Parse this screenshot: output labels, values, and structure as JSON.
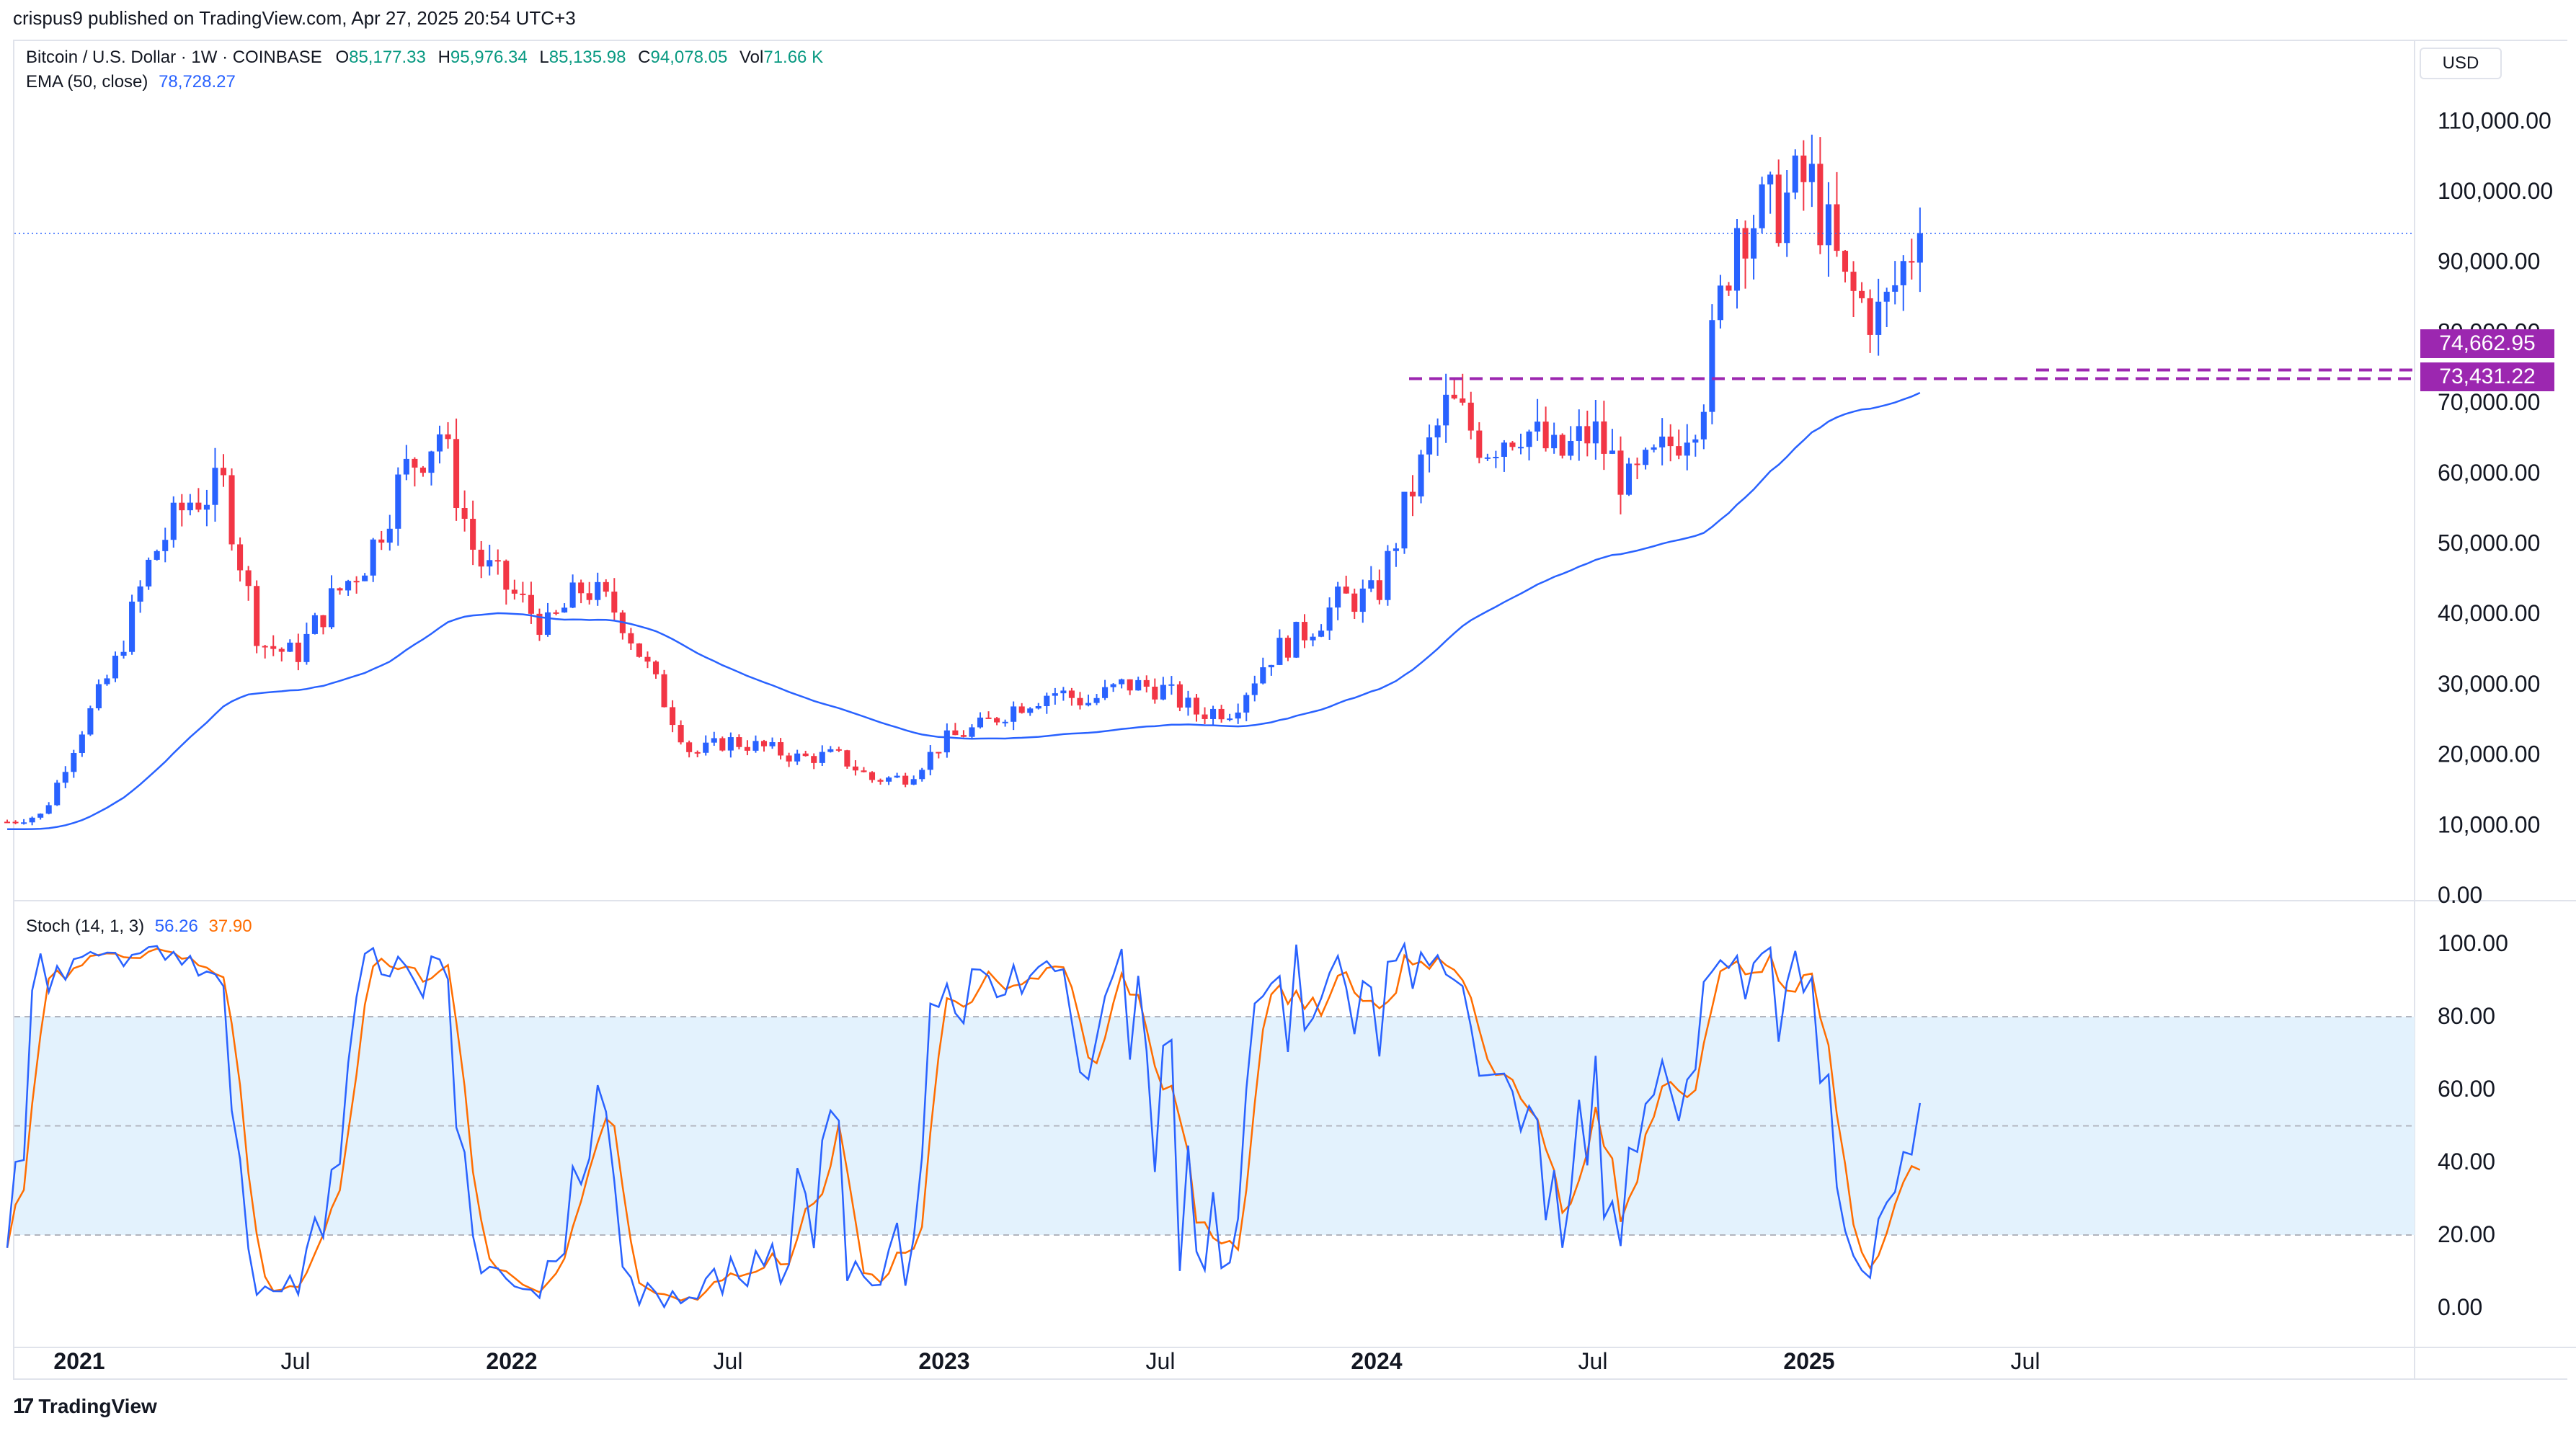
{
  "header": {
    "publisher": "crispus9 published on TradingView.com, Apr 27, 2025 20:54 UTC+3"
  },
  "legend": {
    "symbol": "Bitcoin / U.S. Dollar · 1W · COINBASE",
    "o_label": "O",
    "o_value": "85,177.33",
    "h_label": "H",
    "h_value": "95,976.34",
    "l_label": "L",
    "l_value": "85,135.98",
    "c_label": "C",
    "c_value": "94,078.05",
    "vol_label": "Vol",
    "vol_value": "71.66 K",
    "ema_label": "EMA (50, close)",
    "ema_value": "78,728.27",
    "stoch_label": "Stoch (14, 1, 3)",
    "stoch_k": "56.26",
    "stoch_d": "37.90"
  },
  "currency": "USD",
  "footer": {
    "brand": "TradingView",
    "logo_glyph": "17"
  },
  "price_tags": {
    "upper": "74,662.95",
    "lower": "73,431.22"
  },
  "colors": {
    "up": "#2962ff",
    "down": "#f23645",
    "ema": "#2962ff",
    "stoch_k": "#2962ff",
    "stoch_d": "#ff6d00",
    "support": "#9c27b0",
    "band_fill": "#e3f2fd",
    "grid": "#b2b5be"
  },
  "chart_data": [
    {
      "type": "candlestick",
      "title": "Bitcoin / U.S. Dollar · 1W · COINBASE",
      "ylim": [
        0,
        120000
      ],
      "yticks": [
        "110,000.00",
        "100,000.00",
        "90,000.00",
        "80,000.00",
        "70,000.00",
        "60,000.00",
        "50,000.00",
        "40,000.00",
        "30,000.00",
        "20,000.00",
        "10,000.00",
        "0.00"
      ],
      "xticks": [
        "2021",
        "Jul",
        "2022",
        "Jul",
        "2023",
        "Jul",
        "2024",
        "Jul",
        "2025",
        "Jul"
      ],
      "last_close": 94078.05,
      "support_levels": [
        74662.95,
        73431.22
      ],
      "series_points": [
        [
          "2020-11",
          10500
        ],
        [
          "2020-12",
          11500
        ],
        [
          "2021-01",
          23000
        ],
        [
          "2021-02",
          33000
        ],
        [
          "2021-03",
          48000
        ],
        [
          "2021-04",
          56000
        ],
        [
          "2021-05",
          58000
        ],
        [
          "2021-06",
          36000
        ],
        [
          "2021-07",
          34000
        ],
        [
          "2021-08",
          42000
        ],
        [
          "2021-09",
          48000
        ],
        [
          "2021-10",
          60000
        ],
        [
          "2021-11",
          66000
        ],
        [
          "2021-12",
          48000
        ],
        [
          "2022-01",
          43000
        ],
        [
          "2022-02",
          38000
        ],
        [
          "2022-03",
          44000
        ],
        [
          "2022-04",
          40000
        ],
        [
          "2022-05",
          30000
        ],
        [
          "2022-06",
          20000
        ],
        [
          "2022-07",
          22000
        ],
        [
          "2022-08",
          21000
        ],
        [
          "2022-09",
          19500
        ],
        [
          "2022-10",
          20000
        ],
        [
          "2022-11",
          16500
        ],
        [
          "2022-12",
          16800
        ],
        [
          "2023-01",
          22000
        ],
        [
          "2023-02",
          24000
        ],
        [
          "2023-03",
          27000
        ],
        [
          "2023-04",
          29000
        ],
        [
          "2023-05",
          27500
        ],
        [
          "2023-06",
          30000
        ],
        [
          "2023-07",
          29500
        ],
        [
          "2023-08",
          26000
        ],
        [
          "2023-09",
          26500
        ],
        [
          "2023-10",
          34000
        ],
        [
          "2023-11",
          37500
        ],
        [
          "2023-12",
          42000
        ],
        [
          "2024-01",
          42500
        ],
        [
          "2024-02",
          58000
        ],
        [
          "2024-03",
          70000
        ],
        [
          "2024-04",
          64000
        ],
        [
          "2024-05",
          67000
        ],
        [
          "2024-06",
          62000
        ],
        [
          "2024-07",
          66000
        ],
        [
          "2024-08",
          58000
        ],
        [
          "2024-09",
          63000
        ],
        [
          "2024-10",
          70000
        ],
        [
          "2024-11",
          96000
        ],
        [
          "2024-12",
          97000
        ],
        [
          "2025-01",
          102000
        ],
        [
          "2025-02",
          86000
        ],
        [
          "2025-03",
          82000
        ],
        [
          "2025-04",
          94078
        ]
      ]
    },
    {
      "type": "line",
      "title": "Stoch (14, 1, 3)",
      "ylim": [
        0,
        100
      ],
      "yticks": [
        "100.00",
        "80.00",
        "60.00",
        "40.00",
        "20.00",
        "0.00"
      ],
      "bands": [
        20,
        50,
        80
      ],
      "series": [
        {
          "name": "%K",
          "last": 56.26
        },
        {
          "name": "%D",
          "last": 37.9
        }
      ]
    }
  ]
}
